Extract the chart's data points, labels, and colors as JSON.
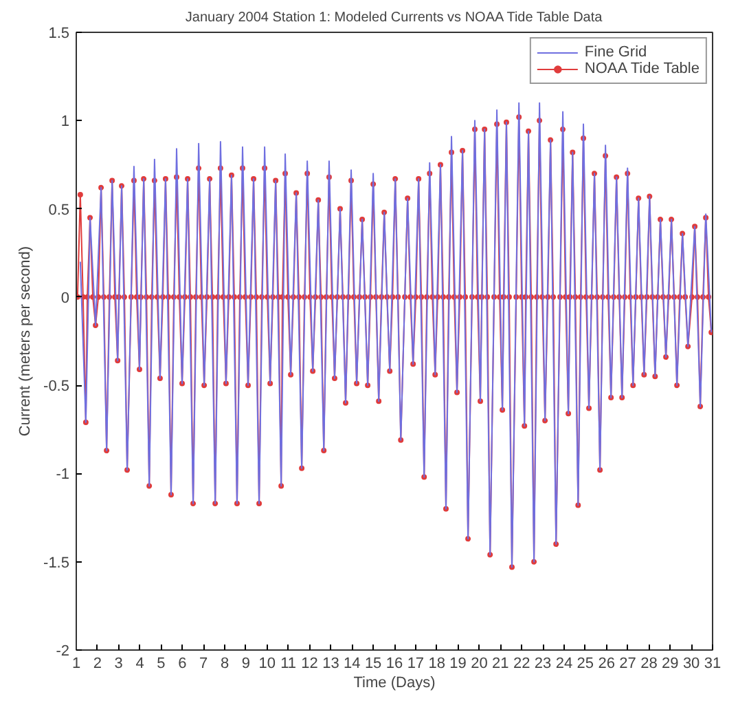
{
  "chart_data": {
    "type": "line",
    "title": "January 2004 Station 1: Modeled Currents vs NOAA Tide Table Data",
    "xlabel": "Time (Days)",
    "ylabel": "Current (meters per second)",
    "xlim": [
      1,
      31
    ],
    "xticks": [
      1,
      2,
      3,
      4,
      5,
      6,
      7,
      8,
      9,
      10,
      11,
      12,
      13,
      14,
      15,
      16,
      17,
      18,
      19,
      20,
      21,
      22,
      23,
      24,
      25,
      26,
      27,
      28,
      29,
      30,
      31
    ],
    "ylim": [
      -2,
      1.5
    ],
    "yticks": [
      -2,
      -1.5,
      -1,
      -0.5,
      0,
      0.5,
      1,
      1.5
    ],
    "grid": false,
    "legend": "top right",
    "series": [
      {
        "name": "Fine Grid",
        "color": "#6f6fe0",
        "marker": "none",
        "x": [
          1.19,
          1.45,
          1.65,
          1.91,
          2.17,
          2.43,
          2.69,
          2.95,
          3.14,
          3.4,
          3.72,
          3.98,
          4.18,
          4.44,
          4.69,
          4.95,
          5.21,
          5.47,
          5.73,
          5.99,
          6.25,
          6.51,
          6.77,
          7.03,
          7.29,
          7.55,
          7.8,
          8.06,
          8.32,
          8.58,
          8.84,
          9.1,
          9.36,
          9.62,
          9.88,
          10.14,
          10.4,
          10.66,
          10.85,
          11.11,
          11.37,
          11.63,
          11.89,
          12.15,
          12.41,
          12.67,
          12.92,
          13.18,
          13.44,
          13.7,
          13.96,
          14.22,
          14.48,
          14.74,
          15.0,
          15.26,
          15.52,
          15.78,
          16.04,
          16.3,
          16.62,
          16.88,
          17.14,
          17.4,
          17.66,
          17.92,
          18.17,
          18.43,
          18.69,
          18.95,
          19.21,
          19.47,
          19.79,
          20.05,
          20.25,
          20.51,
          20.83,
          21.09,
          21.28,
          21.54,
          21.87,
          22.13,
          22.32,
          22.58,
          22.84,
          23.1,
          23.36,
          23.62,
          23.94,
          24.2,
          24.4,
          24.66,
          24.91,
          25.17,
          25.43,
          25.69,
          25.95,
          26.21,
          26.47,
          26.73,
          26.99,
          27.25,
          27.51,
          27.77,
          28.03,
          28.29,
          28.54,
          28.8,
          29.06,
          29.32,
          29.58,
          29.84,
          30.16,
          30.42,
          30.68,
          30.94
        ],
        "values": [
          0.2,
          -0.71,
          0.45,
          -0.16,
          0.62,
          -0.87,
          0.66,
          -0.36,
          0.63,
          -0.98,
          0.74,
          -0.41,
          0.67,
          -1.07,
          0.78,
          -0.46,
          0.67,
          -1.12,
          0.84,
          -0.49,
          0.67,
          -1.17,
          0.87,
          -0.5,
          0.67,
          -1.17,
          0.88,
          -0.49,
          0.69,
          -1.17,
          0.85,
          -0.5,
          0.67,
          -1.17,
          0.85,
          -0.49,
          0.66,
          -1.07,
          0.81,
          -0.44,
          0.59,
          -0.97,
          0.77,
          -0.42,
          0.55,
          -0.87,
          0.77,
          -0.46,
          0.5,
          -0.6,
          0.72,
          -0.49,
          0.44,
          -0.5,
          0.7,
          -0.59,
          0.48,
          -0.42,
          0.67,
          -0.81,
          0.56,
          -0.38,
          0.67,
          -1.02,
          0.76,
          -0.44,
          0.75,
          -1.2,
          0.91,
          -0.54,
          0.83,
          -1.37,
          1.0,
          -0.59,
          0.95,
          -1.46,
          1.06,
          -0.64,
          0.99,
          -1.53,
          1.1,
          -0.73,
          0.94,
          -1.5,
          1.1,
          -0.7,
          0.89,
          -1.4,
          1.05,
          -0.66,
          0.82,
          -1.18,
          0.98,
          -0.63,
          0.7,
          -0.98,
          0.86,
          -0.57,
          0.68,
          -0.57,
          0.73,
          -0.5,
          0.56,
          -0.44,
          0.57,
          -0.45,
          0.44,
          -0.34,
          0.44,
          -0.5,
          0.36,
          -0.28,
          0.4,
          -0.62,
          0.47,
          -0.2
        ]
      },
      {
        "name": "NOAA Tide Table",
        "color": "#e03c3c",
        "marker": "circle",
        "x": [
          1.06,
          1.19,
          1.32,
          1.45,
          1.52,
          1.65,
          1.78,
          1.91,
          2.04,
          2.17,
          2.3,
          2.43,
          2.56,
          2.69,
          2.82,
          2.95,
          3.01,
          3.14,
          3.27,
          3.4,
          3.59,
          3.72,
          3.85,
          3.98,
          4.05,
          4.18,
          4.31,
          4.44,
          4.56,
          4.69,
          4.82,
          4.95,
          5.08,
          5.21,
          5.34,
          5.47,
          5.6,
          5.73,
          5.86,
          5.99,
          6.12,
          6.25,
          6.38,
          6.51,
          6.64,
          6.77,
          6.9,
          7.03,
          7.16,
          7.29,
          7.42,
          7.55,
          7.67,
          7.8,
          7.93,
          8.06,
          8.19,
          8.32,
          8.45,
          8.58,
          8.71,
          8.84,
          8.97,
          9.1,
          9.23,
          9.36,
          9.49,
          9.62,
          9.75,
          9.88,
          10.01,
          10.14,
          10.27,
          10.4,
          10.53,
          10.66,
          10.72,
          10.85,
          10.98,
          11.11,
          11.24,
          11.37,
          11.5,
          11.63,
          11.76,
          11.89,
          12.02,
          12.15,
          12.28,
          12.41,
          12.54,
          12.67,
          12.79,
          12.92,
          13.05,
          13.18,
          13.31,
          13.44,
          13.57,
          13.7,
          13.83,
          13.96,
          14.09,
          14.22,
          14.35,
          14.48,
          14.61,
          14.74,
          14.87,
          15.0,
          15.13,
          15.26,
          15.39,
          15.52,
          15.65,
          15.78,
          15.91,
          16.04,
          16.17,
          16.3,
          16.49,
          16.62,
          16.75,
          16.88,
          17.01,
          17.14,
          17.27,
          17.4,
          17.53,
          17.66,
          17.79,
          17.92,
          18.04,
          18.17,
          18.3,
          18.43,
          18.56,
          18.69,
          18.82,
          18.95,
          19.08,
          19.21,
          19.34,
          19.47,
          19.66,
          19.79,
          19.92,
          20.05,
          20.12,
          20.25,
          20.38,
          20.51,
          20.7,
          20.83,
          20.96,
          21.09,
          21.15,
          21.28,
          21.41,
          21.54,
          21.74,
          21.87,
          22.0,
          22.13,
          22.19,
          22.32,
          22.45,
          22.58,
          22.71,
          22.84,
          22.97,
          23.1,
          23.23,
          23.36,
          23.49,
          23.62,
          23.81,
          23.94,
          24.07,
          24.2,
          24.27,
          24.4,
          24.53,
          24.66,
          24.78,
          24.91,
          25.04,
          25.17,
          25.3,
          25.43,
          25.56,
          25.69,
          25.82,
          25.95,
          26.08,
          26.21,
          26.34,
          26.47,
          26.6,
          26.73,
          26.86,
          26.99,
          27.12,
          27.25,
          27.38,
          27.51,
          27.64,
          27.77,
          27.9,
          28.03,
          28.16,
          28.29,
          28.41,
          28.54,
          28.67,
          28.8,
          28.93,
          29.06,
          29.19,
          29.32,
          29.45,
          29.58,
          29.71,
          29.84,
          30.03,
          30.16,
          30.29,
          30.42,
          30.55,
          30.68,
          30.81,
          30.94
        ],
        "values": [
          0,
          0.58,
          0,
          -0.71,
          0,
          0.45,
          0,
          -0.16,
          0,
          0.62,
          0,
          -0.87,
          0,
          0.66,
          0,
          -0.36,
          0,
          0.63,
          0,
          -0.98,
          0,
          0.66,
          0,
          -0.41,
          0,
          0.67,
          0,
          -1.07,
          0,
          0.66,
          0,
          -0.46,
          0,
          0.67,
          0,
          -1.12,
          0,
          0.68,
          0,
          -0.49,
          0,
          0.67,
          0,
          -1.17,
          0,
          0.73,
          0,
          -0.5,
          0,
          0.67,
          0,
          -1.17,
          0,
          0.73,
          0,
          -0.49,
          0,
          0.69,
          0,
          -1.17,
          0,
          0.73,
          0,
          -0.5,
          0,
          0.67,
          0,
          -1.17,
          0,
          0.73,
          0,
          -0.49,
          0,
          0.66,
          0,
          -1.07,
          0,
          0.7,
          0,
          -0.44,
          0,
          0.59,
          0,
          -0.97,
          0,
          0.7,
          0,
          -0.42,
          0,
          0.55,
          0,
          -0.87,
          0,
          0.68,
          0,
          -0.46,
          0,
          0.5,
          0,
          -0.6,
          0,
          0.66,
          0,
          -0.49,
          0,
          0.44,
          0,
          -0.5,
          0,
          0.64,
          0,
          -0.59,
          0,
          0.48,
          0,
          -0.42,
          0,
          0.67,
          0,
          -0.81,
          0,
          0.56,
          0,
          -0.38,
          0,
          0.67,
          0,
          -1.02,
          0,
          0.7,
          0,
          -0.44,
          0,
          0.75,
          0,
          -1.2,
          0,
          0.82,
          0,
          -0.54,
          0,
          0.83,
          0,
          -1.37,
          0,
          0.95,
          0,
          -0.59,
          0,
          0.95,
          0,
          -1.46,
          0,
          0.98,
          0,
          -0.64,
          0,
          0.99,
          0,
          -1.53,
          0,
          1.02,
          0,
          -0.73,
          0,
          0.94,
          0,
          -1.5,
          0,
          1.0,
          0,
          -0.7,
          0,
          0.89,
          0,
          -1.4,
          0,
          0.95,
          0,
          -0.66,
          0,
          0.82,
          0,
          -1.18,
          0,
          0.9,
          0,
          -0.63,
          0,
          0.7,
          0,
          -0.98,
          0,
          0.8,
          0,
          -0.57,
          0,
          0.68,
          0,
          -0.57,
          0,
          0.7,
          0,
          -0.5,
          0,
          0.56,
          0,
          -0.44,
          0,
          0.57,
          0,
          -0.45,
          0,
          0.44,
          0,
          -0.34,
          0,
          0.44,
          0,
          -0.5,
          0,
          0.36,
          0,
          -0.28,
          0,
          0.4,
          0,
          -0.62,
          0,
          0.45,
          0,
          -0.2
        ]
      }
    ]
  }
}
